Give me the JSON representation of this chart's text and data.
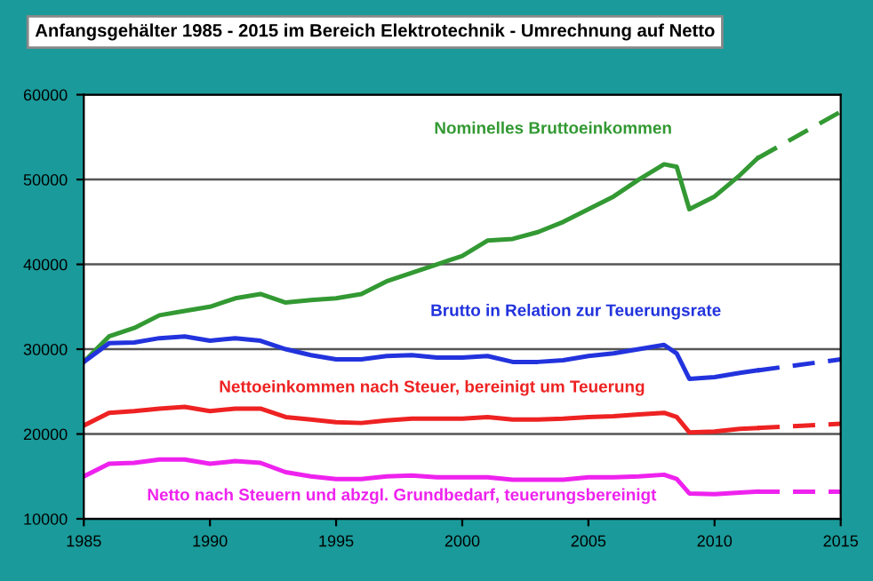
{
  "chart_data": {
    "type": "line",
    "title": "Anfangsgehälter 1985 - 2015 im Bereich Elektrotechnik - Umrechnung auf Netto",
    "xlim": [
      1985,
      2015
    ],
    "xticks": [
      1985,
      1990,
      1995,
      2000,
      2005,
      2010,
      2015
    ],
    "ylim": [
      10000,
      60000
    ],
    "yticks": [
      10000,
      20000,
      30000,
      40000,
      50000,
      60000
    ],
    "grid": "y",
    "legend": false,
    "series": [
      {
        "name": "Nominelles Bruttoeinkommen",
        "color": "#339933",
        "line_style": "solid",
        "x": [
          1985,
          1986,
          1987,
          1988,
          1989,
          1990,
          1991,
          1992,
          1993,
          1994,
          1995,
          1996,
          1997,
          1998,
          1999,
          2000,
          2001,
          2002,
          2003,
          2004,
          2005,
          2006,
          2007,
          2008,
          2008.5,
          2009,
          2010,
          2011,
          2011.7
        ],
        "values": [
          28500,
          31500,
          32500,
          34000,
          34500,
          35000,
          36000,
          36500,
          35500,
          35800,
          36000,
          36500,
          38000,
          39000,
          40000,
          41000,
          42800,
          43000,
          43800,
          45000,
          46500,
          48000,
          50000,
          51800,
          51500,
          46500,
          48000,
          50500,
          52500
        ]
      },
      {
        "color": "#339933",
        "line_style": "dashed",
        "x": [
          2011.7,
          2015
        ],
        "values": [
          52500,
          58000
        ]
      },
      {
        "name": "Brutto in Relation zur Teuerungsrate",
        "color": "#2233dd",
        "line_style": "solid",
        "x": [
          1985,
          1986,
          1987,
          1988,
          1989,
          1990,
          1991,
          1992,
          1993,
          1994,
          1995,
          1996,
          1997,
          1998,
          1999,
          2000,
          2001,
          2002,
          2003,
          2004,
          2005,
          2006,
          2007,
          2008,
          2008.5,
          2009,
          2010,
          2011,
          2011.7
        ],
        "values": [
          28500,
          30700,
          30800,
          31300,
          31500,
          31000,
          31300,
          31000,
          30000,
          29300,
          28800,
          28800,
          29200,
          29300,
          29000,
          29000,
          29200,
          28500,
          28500,
          28700,
          29200,
          29500,
          30000,
          30500,
          29500,
          26500,
          26700,
          27200,
          27500
        ]
      },
      {
        "color": "#2233dd",
        "line_style": "dashed",
        "x": [
          2011.7,
          2015
        ],
        "values": [
          27500,
          28800
        ]
      },
      {
        "name": "Nettoeinkommen nach Steuer, bereinigt um Teuerung",
        "color": "#ee2222",
        "line_style": "solid",
        "x": [
          1985,
          1986,
          1987,
          1988,
          1989,
          1990,
          1991,
          1992,
          1993,
          1994,
          1995,
          1996,
          1997,
          1998,
          1999,
          2000,
          2001,
          2002,
          2003,
          2004,
          2005,
          2006,
          2007,
          2008,
          2008.5,
          2009,
          2010,
          2011,
          2011.7
        ],
        "values": [
          21000,
          22500,
          22700,
          23000,
          23200,
          22700,
          23000,
          23000,
          22000,
          21700,
          21400,
          21300,
          21600,
          21800,
          21800,
          21800,
          22000,
          21700,
          21700,
          21800,
          22000,
          22100,
          22300,
          22500,
          22000,
          20200,
          20300,
          20600,
          20700
        ]
      },
      {
        "color": "#ee2222",
        "line_style": "dashed",
        "x": [
          2011.7,
          2015
        ],
        "values": [
          20700,
          21200
        ]
      },
      {
        "name": "Netto nach Steuern und abzgl. Grundbedarf, teuerungsbereinigt",
        "color": "#ee22ee",
        "line_style": "solid",
        "x": [
          1985,
          1986,
          1987,
          1988,
          1989,
          1990,
          1991,
          1992,
          1993,
          1994,
          1995,
          1996,
          1997,
          1998,
          1999,
          2000,
          2001,
          2002,
          2003,
          2004,
          2005,
          2006,
          2007,
          2008,
          2008.5,
          2009,
          2010,
          2011,
          2011.7
        ],
        "values": [
          15000,
          16500,
          16600,
          17000,
          17000,
          16500,
          16800,
          16600,
          15500,
          15000,
          14700,
          14700,
          15000,
          15100,
          14900,
          14900,
          14900,
          14600,
          14600,
          14600,
          14900,
          14900,
          15000,
          15200,
          14700,
          13000,
          12900,
          13100,
          13200
        ]
      },
      {
        "color": "#ee22ee",
        "line_style": "dashed",
        "x": [
          2011.7,
          2015
        ],
        "values": [
          13200,
          13200
        ]
      }
    ]
  }
}
